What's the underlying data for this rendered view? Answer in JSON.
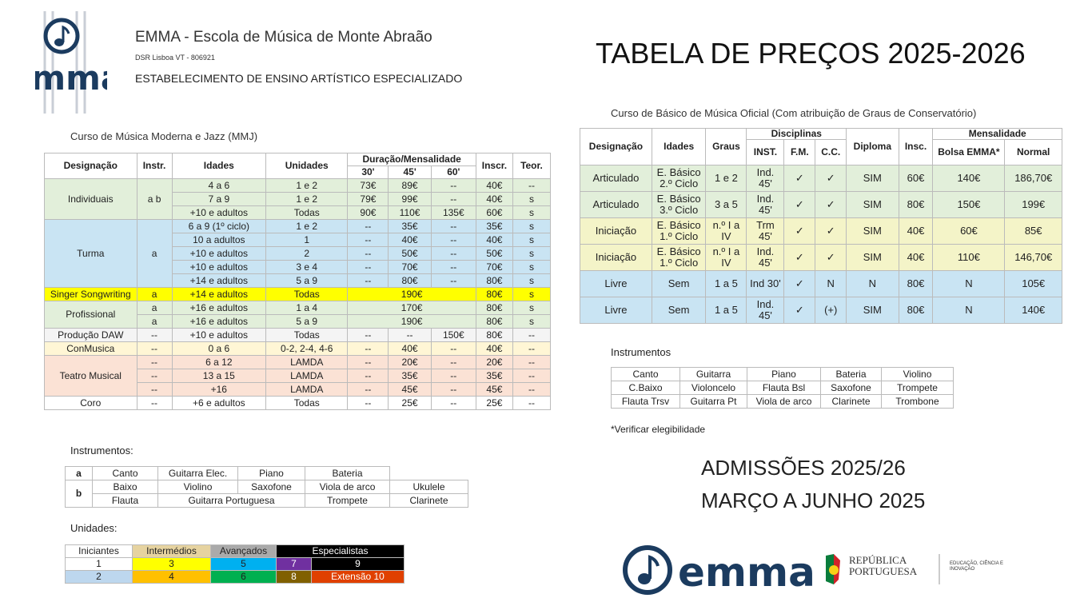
{
  "header": {
    "logo_text": "emma",
    "school": "EMMA - Escola de Música de Monte Abraão",
    "dsr": "DSR Lisboa VT - 806921",
    "subtitle": "ESTABELECIMENTO DE ENSINO ARTÍSTICO ESPECIALIZADO",
    "title": "TABELA DE PREÇOS 2025-2026"
  },
  "mmj": {
    "caption": "Curso de Música Moderna e Jazz (MMJ)",
    "headers": [
      "Designação",
      "Instr.",
      "Idades",
      "Unidades",
      "Duração/Mensalidade",
      "30'",
      "45'",
      "60'",
      "Inscr.",
      "Teor."
    ],
    "rows": [
      [
        "Individuais",
        "a b",
        "4 a 6",
        "1 e 2",
        "73€",
        "89€",
        "--",
        "40€",
        "--"
      ],
      [
        "7 a 9",
        "1 e 2",
        "79€",
        "99€",
        "--",
        "40€",
        "s"
      ],
      [
        "+10 e adultos",
        "Todas",
        "90€",
        "110€",
        "135€",
        "60€",
        "s"
      ],
      [
        "Turma",
        "a",
        "6 a 9 (1º ciclo)",
        "1 e 2",
        "--",
        "35€",
        "--",
        "35€",
        "s"
      ],
      [
        "10 a adultos",
        "1",
        "--",
        "40€",
        "--",
        "40€",
        "s"
      ],
      [
        "+10 e adultos",
        "2",
        "--",
        "50€",
        "--",
        "50€",
        "s"
      ],
      [
        "+10 e adultos",
        "3 e 4",
        "--",
        "70€",
        "--",
        "70€",
        "s"
      ],
      [
        "+14 e adultos",
        "5 a 9",
        "--",
        "80€",
        "--",
        "80€",
        "s"
      ],
      [
        "Singer Songwriting",
        "a",
        "+14 e adultos",
        "Todas",
        "190€",
        "80€",
        "s"
      ],
      [
        "Profissional",
        "a",
        "+16 e adultos",
        "1 a 4",
        "170€",
        "80€",
        "s"
      ],
      [
        "a",
        "+16 e adultos",
        "5 a 9",
        "190€",
        "80€",
        "s"
      ],
      [
        "Produção DAW",
        "--",
        "+10 e adultos",
        "Todas",
        "--",
        "--",
        "150€",
        "80€",
        "--"
      ],
      [
        "ConMusica",
        "--",
        "0 a 6",
        "0-2, 2-4, 4-6",
        "--",
        "40€",
        "--",
        "40€",
        "--"
      ],
      [
        "Teatro Musical",
        "--",
        "6 a 12",
        "LAMDA",
        "--",
        "20€",
        "--",
        "20€",
        "--"
      ],
      [
        "--",
        "13 a 15",
        "LAMDA",
        "--",
        "35€",
        "--",
        "35€",
        "--"
      ],
      [
        "--",
        "+16",
        "LAMDA",
        "--",
        "45€",
        "--",
        "45€",
        "--"
      ],
      [
        "Coro",
        "--",
        "+6 e adultos",
        "Todas",
        "--",
        "25€",
        "--",
        "25€",
        "--"
      ]
    ]
  },
  "instr_left": {
    "title": "Instrumentos:",
    "rows": [
      [
        "a",
        "Canto",
        "Guitarra Elec.",
        "Piano",
        "Bateria"
      ],
      [
        "b",
        "Baixo",
        "Violino",
        "Saxofone",
        "Viola de arco",
        "Ukulele"
      ],
      [
        "Flauta",
        "Guitarra Portuguesa",
        "Trompete",
        "Clarinete"
      ]
    ]
  },
  "unidades": {
    "title": "Unidades:",
    "headers": [
      "Iniciantes",
      "Intermédios",
      "Avançados",
      "Especialistas"
    ],
    "rows": [
      [
        "1",
        "3",
        "5",
        "7",
        "9"
      ],
      [
        "2",
        "4",
        "6",
        "8",
        "Extensão 10"
      ]
    ]
  },
  "oficial": {
    "caption": "Curso de Básico de Música Oficial (Com atribuição de Graus de Conservatório)",
    "headers": [
      "Designação",
      "Idades",
      "Graus",
      "Disciplinas",
      "Diploma",
      "Insc.",
      "Mensalidade",
      "INST.",
      "F.M.",
      "C.C.",
      "Bolsa EMMA*",
      "Normal"
    ],
    "rows": [
      [
        "Articulado",
        "E. Básico 2.º Ciclo",
        "1 e 2",
        "Ind. 45'",
        "✓",
        "✓",
        "SIM",
        "60€",
        "140€",
        "186,70€"
      ],
      [
        "Articulado",
        "E. Básico 3.º Ciclo",
        "3 a 5",
        "Ind. 45'",
        "✓",
        "✓",
        "SIM",
        "80€",
        "150€",
        "199€"
      ],
      [
        "Iniciação",
        "E. Básico 1.º Ciclo",
        "n.º I a IV",
        "Trm 45'",
        "✓",
        "✓",
        "SIM",
        "40€",
        "60€",
        "85€"
      ],
      [
        "Iniciação",
        "E. Básico 1.º Ciclo",
        "n.º I a IV",
        "Ind. 45'",
        "✓",
        "✓",
        "SIM",
        "40€",
        "110€",
        "146,70€"
      ],
      [
        "Livre",
        "Sem",
        "1 a 5",
        "Ind 30'",
        "✓",
        "N",
        "N",
        "80€",
        "N",
        "105€"
      ],
      [
        "Livre",
        "Sem",
        "1 a 5",
        "Ind. 45'",
        "✓",
        "(+)",
        "SIM",
        "80€",
        "N",
        "140€"
      ]
    ]
  },
  "instr_right": {
    "title": "Instrumentos",
    "rows": [
      [
        "Canto",
        "Guitarra",
        "Piano",
        "Bateria",
        "Violino"
      ],
      [
        "C.Baixo",
        "Violoncelo",
        "Flauta Bsl",
        "Saxofone",
        "Trompete"
      ],
      [
        "Flauta Trsv",
        "Guitarra Pt",
        "Viola de arco",
        "Clarinete",
        "Trombone"
      ]
    ],
    "note": "*Verificar elegibilidade"
  },
  "admissions": [
    "ADMISSÕES 2025/26",
    "MARÇO A JUNHO 2025"
  ],
  "footer": {
    "logo_text": "emma",
    "republic": "REPÚBLICA PORTUGUESA",
    "ministry": "EDUCAÇÃO, CIÊNCIA E INOVAÇÃO"
  }
}
